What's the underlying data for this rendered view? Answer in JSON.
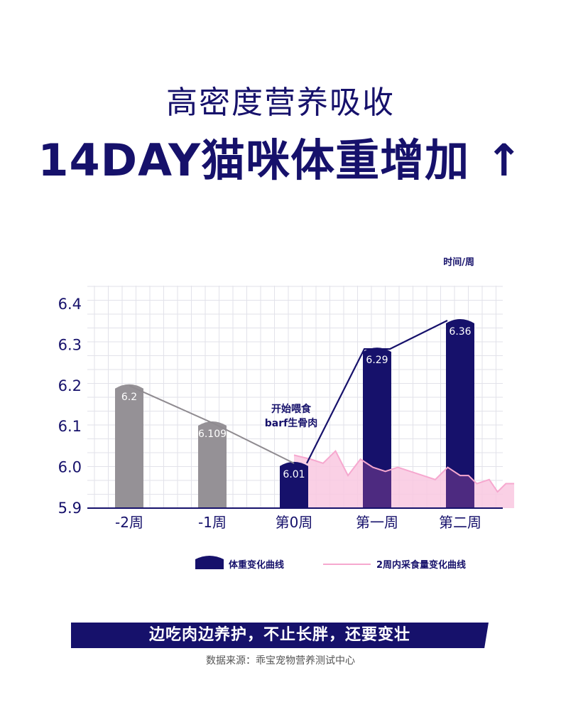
{
  "header": {
    "subtitle": "高密度营养吸收",
    "title": "14DAY猫咪体重增加 ↑"
  },
  "chart_data": {
    "type": "bar",
    "categories": [
      "-2周",
      "-1周",
      "第0周",
      "第一周",
      "第二周"
    ],
    "series": [
      {
        "name": "体重变化曲线",
        "values": [
          6.2,
          6.109,
          6.01,
          6.29,
          6.36
        ],
        "value_labels": [
          "6.2",
          "6.109",
          "6.01",
          "6.29",
          "6.36"
        ]
      }
    ],
    "intake_curve": {
      "name": "2周内采食量变化曲线",
      "x": [
        2.0,
        2.2,
        2.35,
        2.5,
        2.65,
        2.8,
        2.95,
        3.1,
        3.25,
        3.4,
        3.55,
        3.7,
        3.85,
        4.0,
        4.1,
        4.2,
        4.35,
        4.45,
        4.55,
        4.65
      ],
      "values": [
        6.03,
        6.02,
        6.01,
        6.04,
        5.98,
        6.02,
        6.0,
        5.99,
        6.0,
        5.99,
        5.98,
        5.97,
        6.0,
        5.98,
        5.98,
        5.96,
        5.97,
        5.94,
        5.96,
        5.96
      ]
    },
    "yticks": [
      "6.4",
      "6.3",
      "6.2",
      "6.1",
      "6.0",
      "5.9"
    ],
    "ylim": [
      5.9,
      6.42
    ],
    "x_unit_label": "时间/周",
    "annotation": [
      "开始喂食",
      "barf生骨肉"
    ],
    "legend_position": "bottom",
    "grid": true,
    "colors": {
      "past_bar": "#959196",
      "weight": "#16116b",
      "intake_line": "#f6a8cf",
      "intake_fill": "#f9c8e1",
      "overlap": "#4d2a80",
      "past_line": "#8f8b90",
      "grid": "#e2e2ea"
    }
  },
  "banner": {
    "text": "边吃肉边养护，不止长胖，还要变壮"
  },
  "footer": {
    "source": "数据来源：乖宝宠物营养测试中心"
  }
}
